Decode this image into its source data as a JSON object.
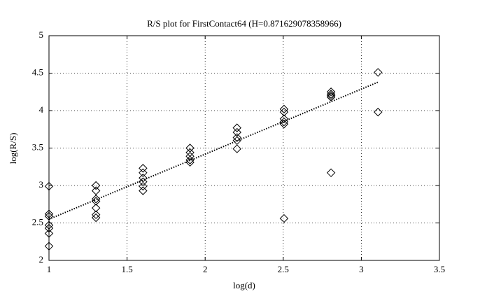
{
  "chart_data": {
    "type": "scatter",
    "title": "R/S plot for FirstContact64 (H=0.871629078358966)",
    "xlabel": "log(d)",
    "ylabel": "log(R/S)",
    "xlim": [
      1,
      3.5
    ],
    "ylim": [
      2,
      5
    ],
    "xticks": [
      1,
      1.5,
      2,
      2.5,
      3,
      3.5
    ],
    "yticks": [
      2,
      2.5,
      3,
      3.5,
      4,
      4.5,
      5
    ],
    "grid": true,
    "series": [
      {
        "type": "scatter",
        "marker": "diamond",
        "color": "#000000",
        "x": [
          1,
          1,
          1,
          1,
          1,
          1,
          1,
          1.301,
          1.301,
          1.301,
          1.301,
          1.301,
          1.301,
          1.301,
          1.602,
          1.602,
          1.602,
          1.602,
          1.602,
          1.602,
          1.903,
          1.903,
          1.903,
          1.903,
          1.903,
          2.204,
          2.204,
          2.204,
          2.204,
          2.204,
          2.505,
          2.505,
          2.505,
          2.505,
          2.505,
          2.505,
          2.806,
          2.806,
          2.806,
          2.806,
          2.806,
          3.107,
          3.107
        ],
        "values": [
          2.99,
          2.62,
          2.59,
          2.47,
          2.43,
          2.36,
          2.19,
          3.0,
          2.93,
          2.82,
          2.79,
          2.7,
          2.61,
          2.57,
          3.23,
          3.17,
          3.1,
          3.05,
          2.99,
          2.93,
          3.5,
          3.44,
          3.39,
          3.34,
          3.31,
          3.77,
          3.71,
          3.64,
          3.6,
          3.49,
          4.02,
          3.98,
          3.89,
          3.85,
          3.82,
          2.56,
          4.25,
          4.22,
          4.2,
          4.18,
          3.17,
          4.51,
          3.98
        ]
      },
      {
        "type": "line",
        "style": "dotted",
        "color": "#000000",
        "x": [
          1,
          3.107
        ],
        "values": [
          2.55,
          4.38
        ]
      }
    ]
  }
}
